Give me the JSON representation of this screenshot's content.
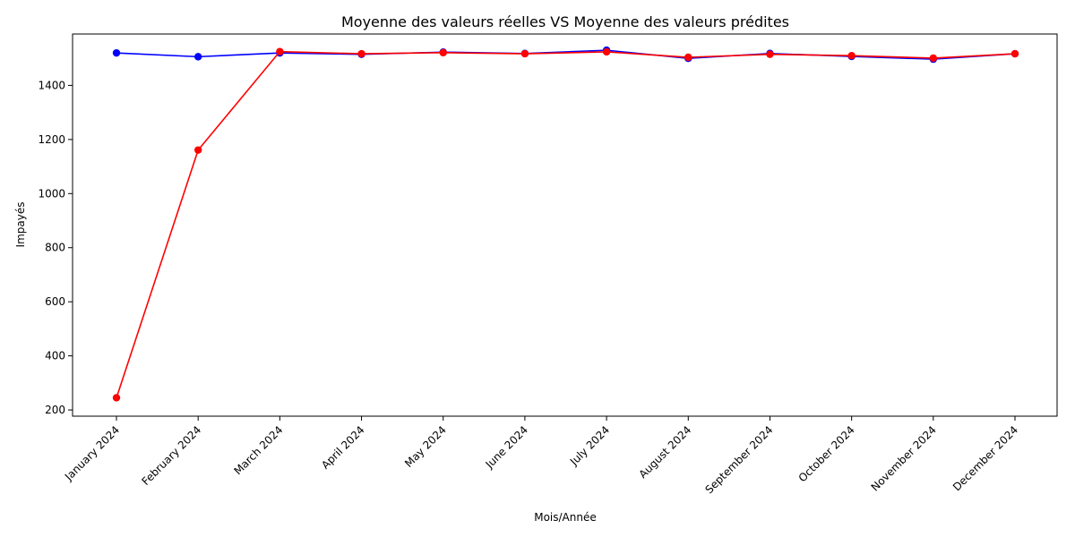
{
  "chart_data": {
    "type": "line",
    "title": "Moyenne des valeurs réelles VS Moyenne des valeurs prédites",
    "xlabel": "Mois/Année",
    "ylabel": "Impayés",
    "categories": [
      "January 2024",
      "February 2024",
      "March 2024",
      "April 2024",
      "May 2024",
      "June 2024",
      "July 2024",
      "August 2024",
      "September 2024",
      "October 2024",
      "November 2024",
      "December 2024"
    ],
    "ylim": [
      177,
      1590
    ],
    "yticks": [
      200,
      400,
      600,
      800,
      1000,
      1200,
      1400
    ],
    "grid": false,
    "series": [
      {
        "color": "#0000ff",
        "values": [
          1520,
          1506,
          1520,
          1515,
          1523,
          1518,
          1530,
          1500,
          1518,
          1507,
          1497,
          1517
        ]
      },
      {
        "color": "#ff0000",
        "values": [
          245,
          1161,
          1525,
          1517,
          1521,
          1517,
          1524,
          1504,
          1515,
          1510,
          1501,
          1517
        ]
      }
    ]
  }
}
